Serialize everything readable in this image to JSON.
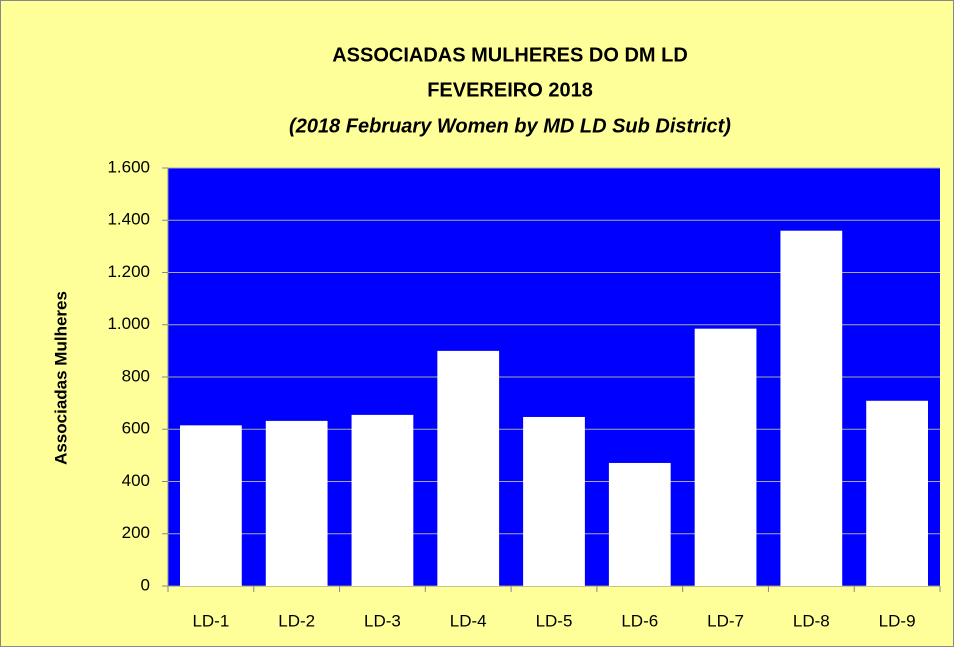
{
  "chart_data": {
    "type": "bar",
    "title": "ASSOCIADAS MULHERES DO DM LD",
    "subtitle": "FEVEREIRO 2018",
    "note": "(2018 February Women by MD LD Sub District)",
    "ylabel": "Associadas   Mulheres",
    "categories": [
      "LD-1",
      "LD-2",
      "LD-3",
      "LD-4",
      "LD-5",
      "LD-6",
      "LD-7",
      "LD-8",
      "LD-9"
    ],
    "values": [
      615,
      632,
      655,
      900,
      647,
      471,
      985,
      1360,
      709
    ],
    "color": "#ffffff",
    "plot_color": "#0000ff",
    "background": "#ffff99",
    "ylim": [
      0,
      1600
    ],
    "yticks": [
      0,
      200,
      400,
      600,
      800,
      {
        "value": 1000,
        "label": "1.000"
      },
      {
        "value": 1200,
        "label": "1.200"
      },
      {
        "value": 1400,
        "label": "1.400"
      },
      {
        "value": 1600,
        "label": "1.600"
      }
    ],
    "grid": true
  }
}
